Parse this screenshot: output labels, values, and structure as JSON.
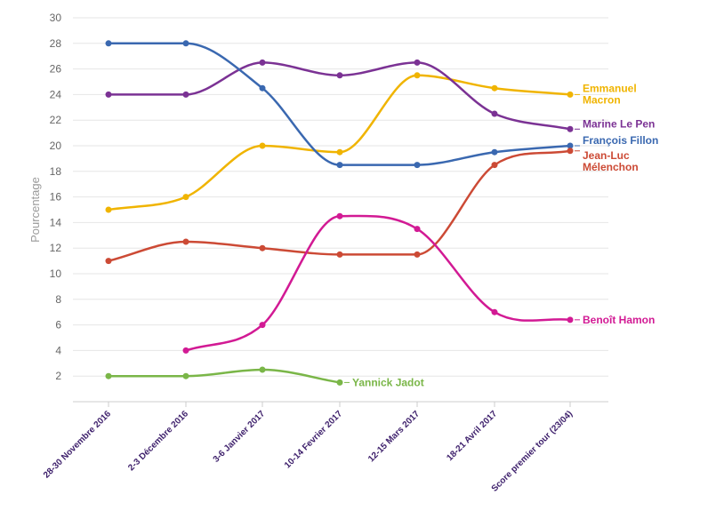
{
  "chart_data": {
    "type": "line",
    "ylabel": "Pourcentage",
    "xlabel": "",
    "ylim": [
      0,
      30
    ],
    "yticks": [
      2,
      4,
      6,
      8,
      10,
      12,
      14,
      16,
      18,
      20,
      22,
      24,
      26,
      28,
      30
    ],
    "grid": true,
    "categories": [
      "28-30 Novembre 2016",
      "2-3 Décembre 2016",
      "3-6 Janvier 2017",
      "10-14 Fevrier 2017",
      "12-15 Mars 2017",
      "18-21 Avril 2017",
      "Score premier tour (23/04)"
    ],
    "series": [
      {
        "name": "Emmanuel Macron",
        "label_lines": [
          "Emmanuel",
          "Macron"
        ],
        "color": "#f0b400",
        "values": [
          15,
          16,
          20,
          19.5,
          25.5,
          24.5,
          24
        ]
      },
      {
        "name": "Marine Le Pen",
        "label_lines": [
          "Marine Le Pen"
        ],
        "color": "#7b3294",
        "values": [
          24,
          24,
          26.5,
          25.5,
          26.5,
          22.5,
          21.3
        ]
      },
      {
        "name": "François Fillon",
        "label_lines": [
          "François Fillon"
        ],
        "color": "#3a68b0",
        "values": [
          28,
          28,
          24.5,
          18.5,
          18.5,
          19.5,
          20
        ]
      },
      {
        "name": "Jean-Luc Mélenchon",
        "label_lines": [
          "Jean-Luc",
          "Mélenchon"
        ],
        "color": "#cc4a35",
        "values": [
          11,
          12.5,
          12,
          11.5,
          11.5,
          18.5,
          19.6
        ]
      },
      {
        "name": "Benoît Hamon",
        "label_lines": [
          "Benoît Hamon"
        ],
        "color": "#d21a94",
        "values": [
          null,
          4,
          6,
          14.5,
          13.5,
          7,
          6.4
        ]
      },
      {
        "name": "Yannick Jadot",
        "label_lines": [
          "Yannick Jadot"
        ],
        "color": "#7ab648",
        "values": [
          2,
          2,
          2.5,
          1.5,
          null,
          null,
          null
        ]
      }
    ]
  }
}
